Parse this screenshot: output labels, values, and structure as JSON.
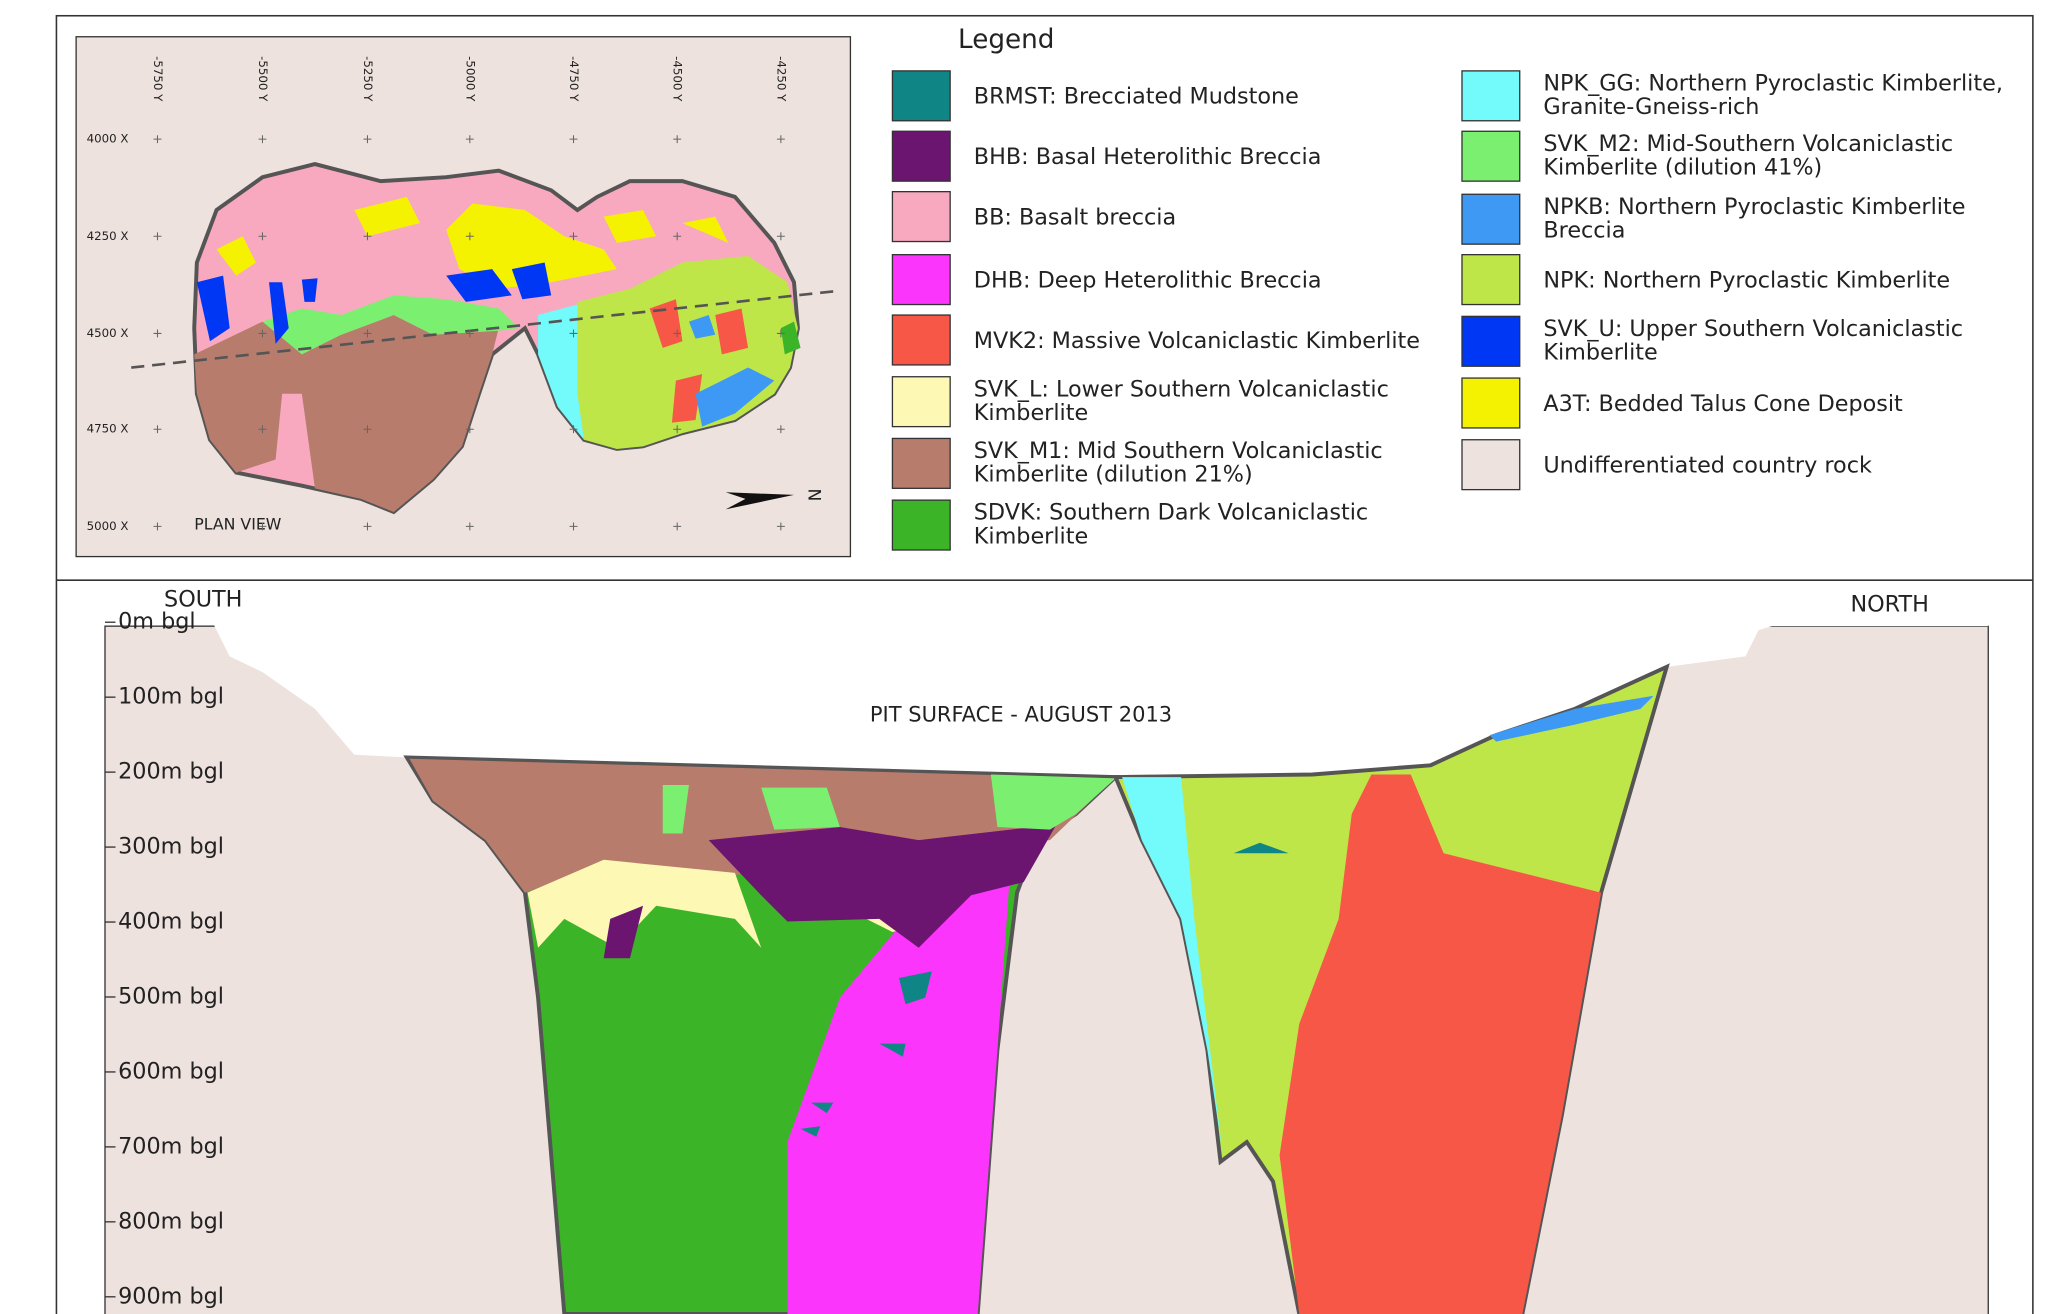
{
  "plan_view": {
    "title": "PLAN VIEW",
    "north": "N",
    "y_labels": [
      "-5750 Y",
      "-5500 Y",
      "-5250 Y",
      "-5000 Y",
      "-4750 Y",
      "-4500 Y",
      "-4250 Y"
    ],
    "x_labels": [
      "4000 X",
      "4250 X",
      "4500 X",
      "4750 X",
      "5000 X"
    ]
  },
  "legend": {
    "title": "Legend",
    "left_items": [
      {
        "label": [
          "BRMST: Brecciated Mudstone"
        ],
        "color": "#0f8585"
      },
      {
        "label": [
          "BHB: Basal Heterolithic Breccia"
        ],
        "color": "#6b1470"
      },
      {
        "label": [
          "BB: Basalt breccia"
        ],
        "color": "#f8a9bf"
      },
      {
        "label": [
          "DHB: Deep Heterolithic Breccia"
        ],
        "color": "#fb35fb"
      },
      {
        "label": [
          "MVK2: Massive Volcaniclastic Kimberlite"
        ],
        "color": "#f65747"
      },
      {
        "label": [
          "SVK_L: Lower Southern Volcaniclastic",
          "Kimberlite"
        ],
        "color": "#fdf9b5"
      },
      {
        "label": [
          "SVK_M1: Mid Southern Volcaniclastic",
          "Kimberlite (dilution 21%)"
        ],
        "color": "#b87c6d"
      },
      {
        "label": [
          "SDVK: Southern Dark Volcaniclastic",
          "Kimberlite"
        ],
        "color": "#3cb428"
      }
    ],
    "right_items": [
      {
        "label": [
          "NPK_GG: Northern Pyroclastic Kimberlite,",
          "Granite-Gneiss-rich"
        ],
        "color": "#73fafb"
      },
      {
        "label": [
          "SVK_M2: Mid-Southern Volcaniclastic",
          "Kimberlite (dilution 41%)"
        ],
        "color": "#7bf070"
      },
      {
        "label": [
          "NPKB: Northern Pyroclastic Kimberlite",
          "Breccia"
        ],
        "color": "#3e99f5"
      },
      {
        "label": [
          "NPK: Northern Pyroclastic Kimberlite"
        ],
        "color": "#bfe648"
      },
      {
        "label": [
          "SVK_U: Upper Southern Volcaniclastic",
          "Kimberlite"
        ],
        "color": "#0037f5"
      },
      {
        "label": [
          "A3T: Bedded Talus Cone Deposit"
        ],
        "color": "#f4f200"
      },
      {
        "label": [
          "Undifferentiated country rock"
        ],
        "color": "#eee2de"
      }
    ]
  },
  "section": {
    "south": "SOUTH",
    "north": "NORTH",
    "pit_label": "PIT SURFACE - AUGUST 2013",
    "depth_labels": [
      "0m bgl",
      "100m bgl",
      "200m bgl",
      "300m bgl",
      "400m bgl",
      "500m bgl",
      "600m bgl",
      "700m bgl",
      "800m bgl",
      "900m bgl"
    ]
  }
}
